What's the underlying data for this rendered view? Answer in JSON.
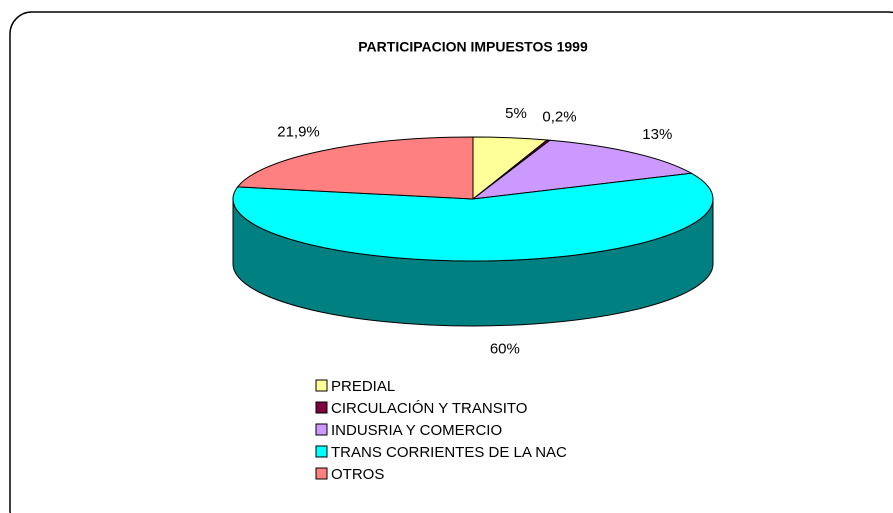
{
  "chart_data": {
    "type": "pie3d",
    "title": "PARTICIPACION IMPUESTOS 1999",
    "categories": [
      "PREDIAL",
      "CIRCULACIÓN Y TRANSITO",
      "INDUSRIA Y COMERCIO",
      "TRANS CORRIENTES DE LA NAC",
      "OTROS"
    ],
    "values": [
      5,
      0.2,
      13,
      60,
      21.9
    ],
    "value_labels": [
      "5%",
      "0,2%",
      "13%",
      "60%",
      "21,9%"
    ],
    "colors": [
      "#ffff99",
      "#800040",
      "#cc99ff",
      "#00ffff",
      "#ff8080"
    ]
  }
}
